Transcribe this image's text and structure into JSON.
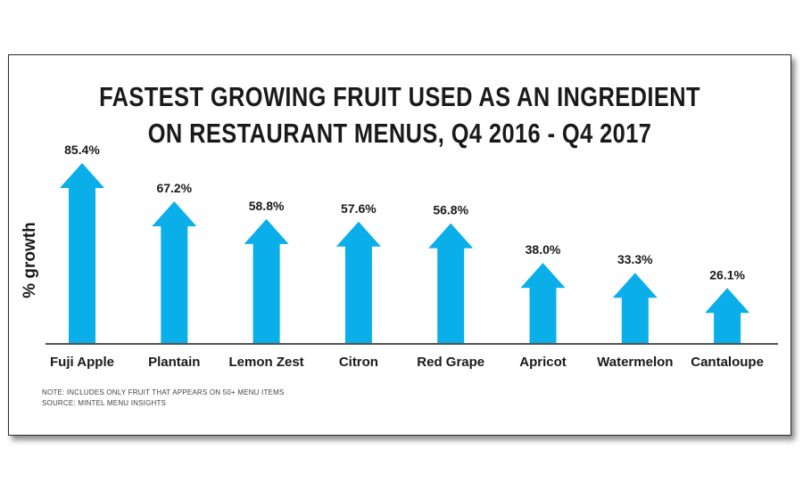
{
  "chart_data": {
    "type": "bar",
    "title_line1": "FASTEST GROWING FRUIT USED AS AN INGREDIENT",
    "title_line2": "ON RESTAURANT MENUS, Q4 2016 - Q4 2017",
    "ylabel": "% growth",
    "categories": [
      "Fuji Apple",
      "Plantain",
      "Lemon Zest",
      "Citron",
      "Red Grape",
      "Apricot",
      "Watermelon",
      "Cantaloupe"
    ],
    "values": [
      85.4,
      67.2,
      58.8,
      57.6,
      56.8,
      38.0,
      33.3,
      26.1
    ],
    "value_labels": [
      "85.4%",
      "67.2%",
      "58.8%",
      "57.6%",
      "56.8%",
      "38.0%",
      "33.3%",
      "26.1%"
    ],
    "ylim": [
      0,
      85.4
    ],
    "bar_color": "#0aaee8",
    "grid": false,
    "notes": [
      "NOTE: INCLUDES ONLY FRUIT THAT APPEARS ON 50+ MENU ITEMS",
      "SOURCE: MINTEL MENU INSIGHTS"
    ]
  }
}
